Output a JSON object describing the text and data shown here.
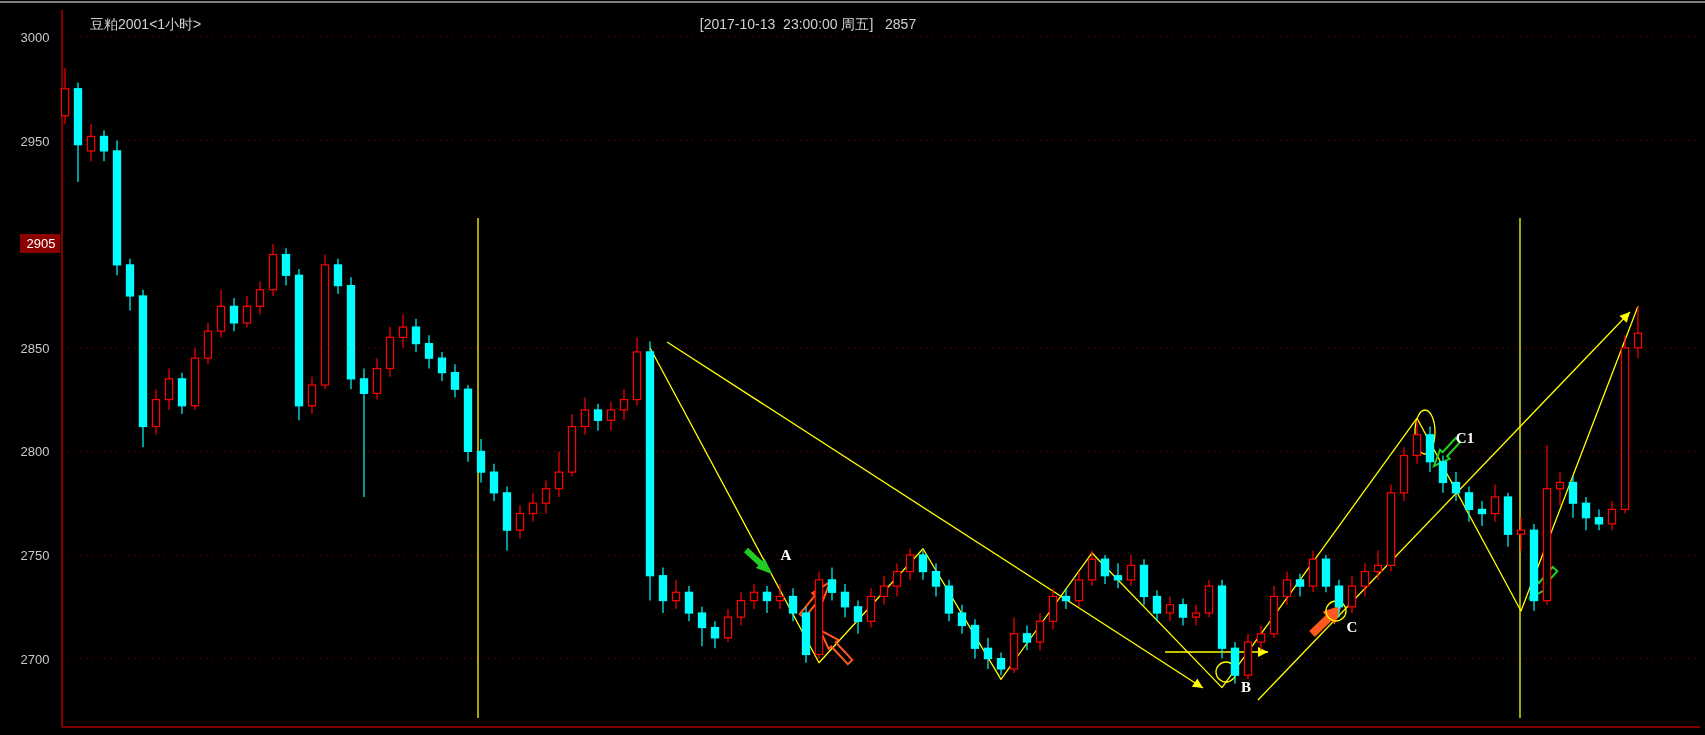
{
  "chart_data": {
    "type": "candlestick",
    "title": "豆粕2001<1小时>",
    "subtitle": "[2017-10-13  23:00:00 周五]   2857",
    "categories": [
      null,
      null,
      null,
      null,
      null,
      null,
      null,
      null,
      null,
      null,
      null,
      null,
      null,
      null,
      null,
      null,
      null,
      null,
      null,
      null,
      null,
      null,
      null,
      null,
      null,
      null,
      null,
      null,
      null,
      null,
      null,
      null,
      null,
      null,
      null,
      null,
      null,
      null,
      null,
      null,
      null,
      null,
      null,
      null,
      null,
      null,
      null,
      null,
      null,
      null,
      null,
      null,
      null,
      null,
      null,
      null,
      null,
      null,
      null,
      null,
      null,
      null,
      null,
      null,
      null,
      null,
      null,
      null,
      null,
      null,
      null,
      null,
      null,
      null,
      null,
      null,
      null,
      null,
      null,
      null,
      null,
      null,
      null,
      null,
      null,
      null,
      null,
      null,
      null,
      null,
      null,
      null,
      null,
      null,
      null,
      null,
      null,
      null,
      null,
      null,
      null,
      null,
      null,
      null,
      null,
      null,
      null,
      null,
      null,
      null,
      null,
      null,
      null,
      null,
      null,
      null,
      null,
      null,
      null,
      null,
      null,
      null
    ],
    "ohlc": [
      [
        2962,
        2985,
        2958,
        2975
      ],
      [
        2975,
        2978,
        2930,
        2948
      ],
      [
        2945,
        2958,
        2940,
        2952
      ],
      [
        2952,
        2955,
        2940,
        2945
      ],
      [
        2945,
        2950,
        2885,
        2890
      ],
      [
        2890,
        2893,
        2868,
        2875
      ],
      [
        2875,
        2878,
        2802,
        2812
      ],
      [
        2812,
        2830,
        2808,
        2825
      ],
      [
        2825,
        2840,
        2820,
        2835
      ],
      [
        2835,
        2838,
        2818,
        2822
      ],
      [
        2822,
        2850,
        2820,
        2845
      ],
      [
        2845,
        2862,
        2842,
        2858
      ],
      [
        2858,
        2878,
        2855,
        2870
      ],
      [
        2870,
        2874,
        2858,
        2862
      ],
      [
        2862,
        2875,
        2860,
        2870
      ],
      [
        2870,
        2882,
        2866,
        2878
      ],
      [
        2878,
        2900,
        2875,
        2895
      ],
      [
        2895,
        2898,
        2880,
        2885
      ],
      [
        2885,
        2888,
        2815,
        2822
      ],
      [
        2822,
        2836,
        2818,
        2832
      ],
      [
        2832,
        2895,
        2830,
        2890
      ],
      [
        2890,
        2893,
        2876,
        2880
      ],
      [
        2880,
        2884,
        2830,
        2835
      ],
      [
        2835,
        2840,
        2778,
        2828
      ],
      [
        2828,
        2845,
        2825,
        2840
      ],
      [
        2840,
        2860,
        2836,
        2855
      ],
      [
        2855,
        2866,
        2850,
        2860
      ],
      [
        2860,
        2864,
        2848,
        2852
      ],
      [
        2852,
        2856,
        2840,
        2845
      ],
      [
        2845,
        2848,
        2834,
        2838
      ],
      [
        2838,
        2842,
        2826,
        2830
      ],
      [
        2830,
        2832,
        2795,
        2800
      ],
      [
        2800,
        2806,
        2785,
        2790
      ],
      [
        2790,
        2794,
        2776,
        2780
      ],
      [
        2780,
        2783,
        2752,
        2762
      ],
      [
        2762,
        2774,
        2758,
        2770
      ],
      [
        2770,
        2780,
        2766,
        2775
      ],
      [
        2775,
        2786,
        2770,
        2782
      ],
      [
        2782,
        2800,
        2778,
        2790
      ],
      [
        2790,
        2818,
        2788,
        2812
      ],
      [
        2812,
        2826,
        2808,
        2820
      ],
      [
        2820,
        2823,
        2810,
        2815
      ],
      [
        2815,
        2824,
        2810,
        2820
      ],
      [
        2820,
        2830,
        2815,
        2825
      ],
      [
        2825,
        2855,
        2822,
        2848
      ],
      [
        2848,
        2853,
        2728,
        2740
      ],
      [
        2740,
        2744,
        2722,
        2728
      ],
      [
        2728,
        2738,
        2724,
        2732
      ],
      [
        2732,
        2735,
        2718,
        2722
      ],
      [
        2722,
        2725,
        2706,
        2715
      ],
      [
        2715,
        2718,
        2705,
        2710
      ],
      [
        2710,
        2724,
        2708,
        2720
      ],
      [
        2720,
        2732,
        2716,
        2728
      ],
      [
        2728,
        2736,
        2724,
        2732
      ],
      [
        2732,
        2735,
        2722,
        2728
      ],
      [
        2728,
        2736,
        2724,
        2730
      ],
      [
        2730,
        2734,
        2718,
        2722
      ],
      [
        2722,
        2725,
        2698,
        2702
      ],
      [
        2702,
        2742,
        2700,
        2738
      ],
      [
        2738,
        2744,
        2728,
        2732
      ],
      [
        2732,
        2736,
        2720,
        2725
      ],
      [
        2725,
        2728,
        2712,
        2718
      ],
      [
        2718,
        2734,
        2715,
        2730
      ],
      [
        2730,
        2740,
        2726,
        2735
      ],
      [
        2735,
        2746,
        2730,
        2742
      ],
      [
        2742,
        2753,
        2738,
        2750
      ],
      [
        2750,
        2752,
        2738,
        2742
      ],
      [
        2742,
        2746,
        2730,
        2735
      ],
      [
        2735,
        2738,
        2718,
        2722
      ],
      [
        2722,
        2726,
        2712,
        2716
      ],
      [
        2716,
        2719,
        2700,
        2705
      ],
      [
        2705,
        2710,
        2695,
        2700
      ],
      [
        2700,
        2703,
        2692,
        2695
      ],
      [
        2695,
        2720,
        2693,
        2712
      ],
      [
        2712,
        2716,
        2704,
        2708
      ],
      [
        2708,
        2722,
        2704,
        2718
      ],
      [
        2718,
        2734,
        2714,
        2730
      ],
      [
        2730,
        2734,
        2724,
        2728
      ],
      [
        2728,
        2742,
        2725,
        2738
      ],
      [
        2738,
        2752,
        2735,
        2748
      ],
      [
        2748,
        2750,
        2736,
        2740
      ],
      [
        2740,
        2746,
        2734,
        2738
      ],
      [
        2738,
        2750,
        2735,
        2745
      ],
      [
        2745,
        2748,
        2726,
        2730
      ],
      [
        2730,
        2733,
        2718,
        2722
      ],
      [
        2722,
        2730,
        2718,
        2726
      ],
      [
        2726,
        2729,
        2716,
        2720
      ],
      [
        2720,
        2726,
        2716,
        2722
      ],
      [
        2722,
        2738,
        2720,
        2735
      ],
      [
        2735,
        2738,
        2700,
        2705
      ],
      [
        2705,
        2708,
        2688,
        2692
      ],
      [
        2692,
        2712,
        2690,
        2708
      ],
      [
        2708,
        2716,
        2704,
        2712
      ],
      [
        2712,
        2735,
        2710,
        2730
      ],
      [
        2730,
        2742,
        2726,
        2738
      ],
      [
        2738,
        2741,
        2730,
        2735
      ],
      [
        2735,
        2752,
        2732,
        2748
      ],
      [
        2748,
        2750,
        2732,
        2735
      ],
      [
        2735,
        2738,
        2720,
        2725
      ],
      [
        2725,
        2740,
        2722,
        2735
      ],
      [
        2735,
        2746,
        2730,
        2742
      ],
      [
        2742,
        2752,
        2738,
        2745
      ],
      [
        2745,
        2784,
        2742,
        2780
      ],
      [
        2780,
        2802,
        2776,
        2798
      ],
      [
        2798,
        2815,
        2794,
        2808
      ],
      [
        2808,
        2812,
        2790,
        2795
      ],
      [
        2795,
        2798,
        2780,
        2785
      ],
      [
        2785,
        2790,
        2776,
        2780
      ],
      [
        2780,
        2783,
        2766,
        2772
      ],
      [
        2772,
        2776,
        2764,
        2770
      ],
      [
        2770,
        2784,
        2766,
        2778
      ],
      [
        2778,
        2780,
        2754,
        2760
      ],
      [
        2760,
        2768,
        2752,
        2762
      ],
      [
        2762,
        2765,
        2723,
        2728
      ],
      [
        2728,
        2803,
        2726,
        2782
      ],
      [
        2782,
        2790,
        2774,
        2785
      ],
      [
        2785,
        2788,
        2768,
        2775
      ],
      [
        2775,
        2778,
        2762,
        2768
      ],
      [
        2768,
        2772,
        2762,
        2765
      ],
      [
        2765,
        2776,
        2762,
        2772
      ],
      [
        2772,
        2856,
        2770,
        2850
      ],
      [
        2850,
        2870,
        2845,
        2857
      ]
    ],
    "series": [
      {
        "type": "line",
        "color": "#ffff00",
        "values": [
          null,
          null,
          null,
          null,
          null,
          null,
          null,
          null,
          null,
          null,
          null,
          null,
          null,
          null,
          null,
          null,
          null,
          null,
          null,
          null,
          null,
          null,
          null,
          null,
          null,
          null,
          null,
          null,
          null,
          null,
          null,
          null,
          null,
          null,
          null,
          null,
          null,
          null,
          null,
          null,
          null,
          null,
          null,
          null,
          null,
          2850,
          null,
          null,
          null,
          null,
          null,
          null,
          null,
          null,
          null,
          null,
          null,
          null,
          2698,
          null,
          null,
          null,
          null,
          null,
          null,
          null,
          2753,
          null,
          null,
          null,
          null,
          null,
          2690,
          null,
          null,
          null,
          null,
          null,
          null,
          2751,
          null,
          null,
          null,
          null,
          null,
          null,
          null,
          null,
          null,
          2686,
          null,
          null,
          null,
          null,
          null,
          null,
          null,
          null,
          null,
          null,
          null,
          null,
          null,
          null,
          2816,
          null,
          null,
          null,
          null,
          null,
          null,
          null,
          2723,
          null,
          null,
          null,
          null,
          null,
          null,
          null,
          null,
          2870
        ]
      }
    ],
    "ylim": [
      2667,
      3013
    ],
    "yticks": [
      2700,
      2750,
      2800,
      2850,
      2950,
      3000
    ],
    "grid": "y",
    "tick_labels": "y",
    "annotations": [
      "2905",
      "A",
      "B",
      "C",
      "C1"
    ]
  }
}
